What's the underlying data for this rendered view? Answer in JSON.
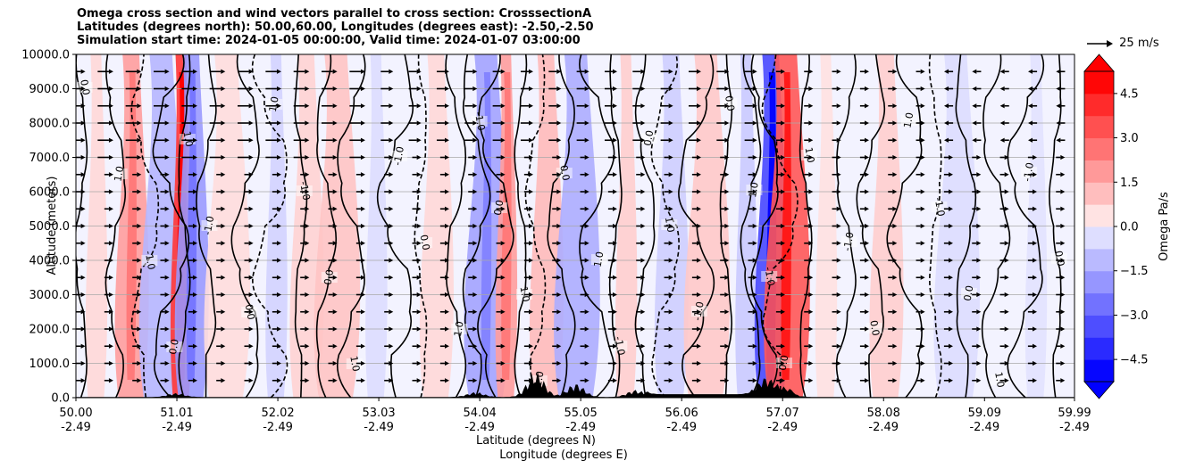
{
  "title": {
    "line1": "Omega cross section and wind vectors parallel to cross section: CrosssectionA",
    "line2": "Latitudes (degrees north): 50.00,60.00, Longitudes (degrees east): -2.50,-2.50",
    "line3": "Simulation start time: 2024-01-05 00:00:00, Valid time: 2024-01-07 03:00:00"
  },
  "chart_data": {
    "type": "heatmap",
    "xlabel": "Latitude (degrees N)",
    "xlabel2": "Longitude (degrees E)",
    "ylabel": "Altitude (meters)",
    "colorbar_label": "Omega Pa/s",
    "ylim": [
      0,
      10000
    ],
    "y_ticks": [
      "0.0",
      "1000.0",
      "2000.0",
      "3000.0",
      "4000.0",
      "5000.0",
      "6000.0",
      "7000.0",
      "8000.0",
      "9000.0",
      "10000.0"
    ],
    "x_ticks": [
      {
        "lat": "50.00",
        "lon": "-2.49"
      },
      {
        "lat": "51.01",
        "lon": "-2.49"
      },
      {
        "lat": "52.02",
        "lon": "-2.49"
      },
      {
        "lat": "53.03",
        "lon": "-2.49"
      },
      {
        "lat": "54.04",
        "lon": "-2.49"
      },
      {
        "lat": "55.05",
        "lon": "-2.49"
      },
      {
        "lat": "56.06",
        "lon": "-2.49"
      },
      {
        "lat": "57.07",
        "lon": "-2.49"
      },
      {
        "lat": "58.08",
        "lon": "-2.49"
      },
      {
        "lat": "59.09",
        "lon": "-2.49"
      },
      {
        "lat": "59.99",
        "lon": "-2.49"
      }
    ],
    "colorbar_range": [
      -5.25,
      5.25
    ],
    "colorbar_ticks": [
      "4.5",
      "3.0",
      "1.5",
      "0.0",
      "−1.5",
      "−3.0",
      "−4.5"
    ],
    "colorbar_values": [
      4.5,
      3.0,
      1.5,
      0.0,
      -1.5,
      -3.0,
      -4.5
    ],
    "wind_legend": "25 m/s",
    "contour_labels": [
      "0.0",
      "1.0",
      "-1.0",
      "2.0",
      "-2.0",
      "4.0"
    ],
    "omega_bands": [
      {
        "lat": 50.2,
        "omega": 0.6
      },
      {
        "lat": 50.55,
        "omega": 1.8
      },
      {
        "lat": 50.85,
        "omega": -1.2
      },
      {
        "lat": 51.05,
        "omega": 3.9
      },
      {
        "lat": 51.15,
        "omega": -1.8
      },
      {
        "lat": 51.5,
        "omega": 0.5
      },
      {
        "lat": 52.0,
        "omega": -0.6
      },
      {
        "lat": 52.3,
        "omega": 0.7
      },
      {
        "lat": 52.6,
        "omega": 1.0
      },
      {
        "lat": 53.0,
        "omega": -0.4
      },
      {
        "lat": 53.6,
        "omega": 0.6
      },
      {
        "lat": 54.1,
        "omega": -1.6
      },
      {
        "lat": 54.3,
        "omega": 1.8
      },
      {
        "lat": 54.7,
        "omega": 1.2
      },
      {
        "lat": 55.0,
        "omega": -1.4
      },
      {
        "lat": 55.5,
        "omega": 0.8
      },
      {
        "lat": 55.95,
        "omega": -0.7
      },
      {
        "lat": 56.3,
        "omega": 0.9
      },
      {
        "lat": 56.7,
        "omega": -0.8
      },
      {
        "lat": 56.95,
        "omega": -3.5
      },
      {
        "lat": 57.1,
        "omega": 3.2
      },
      {
        "lat": 57.5,
        "omega": 0.4
      },
      {
        "lat": 58.1,
        "omega": 0.8
      },
      {
        "lat": 58.8,
        "omega": -0.4
      },
      {
        "lat": 59.6,
        "omega": -0.3
      }
    ],
    "terrain_peaks": [
      {
        "lat": 51.0,
        "height": 120
      },
      {
        "lat": 54.0,
        "height": 150
      },
      {
        "lat": 54.6,
        "height": 780
      },
      {
        "lat": 55.0,
        "height": 420
      },
      {
        "lat": 55.6,
        "height": 220
      },
      {
        "lat": 56.9,
        "height": 520
      },
      {
        "lat": 57.1,
        "height": 180
      }
    ]
  }
}
